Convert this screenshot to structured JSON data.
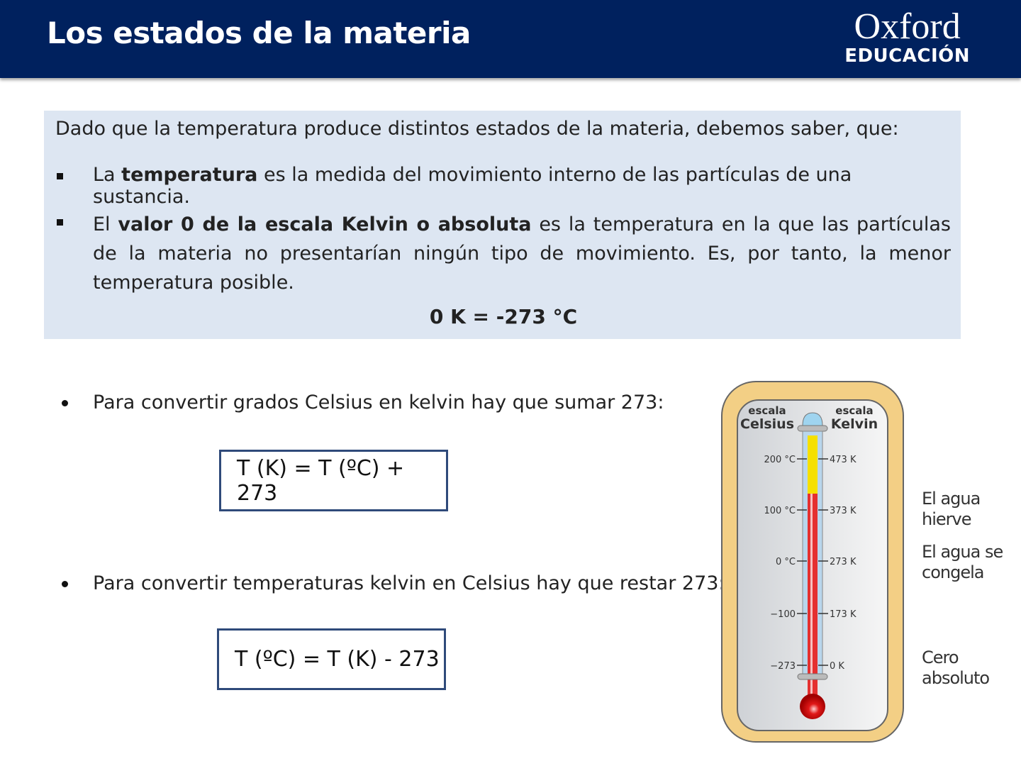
{
  "header": {
    "title": "Los estados de la materia",
    "logo_line1": "Oxford",
    "logo_line2": "EDUCACIÓN",
    "bg_color": "#00215e"
  },
  "info": {
    "intro": "Dado que la temperatura produce distintos estados de la materia, debemos saber, que:",
    "bullet1": {
      "pre": "La ",
      "bold": "temperatura",
      "post": " es la medida del movimiento interno de las partículas de una sustancia."
    },
    "bullet2": {
      "pre": "El ",
      "bold": "valor 0 de la escala Kelvin o absoluta",
      "post": " es la temperatura en la que las partículas de la materia no presentarían ningún tipo de movimiento. Es, por tanto, la menor temperatura posible."
    },
    "equation": "0 K = -273 °C"
  },
  "conversions": [
    {
      "text": "Para convertir grados Celsius en kelvin hay que sumar 273:",
      "formula": "T (K) = T (ºC) + 273"
    },
    {
      "text": "Para convertir temperaturas kelvin en Celsius hay que restar 273:",
      "formula": "T (ºC) = T (K) - 273"
    }
  ],
  "thermometer": {
    "celsius_title_1": "escala",
    "celsius_title_2": "Celsius",
    "kelvin_title_1": "escala",
    "kelvin_title_2": "Kelvin",
    "ticks": [
      {
        "c": "200 °C",
        "k": "473 K"
      },
      {
        "c": "100 °C",
        "k": "373 K"
      },
      {
        "c": "0 °C",
        "k": "273 K"
      },
      {
        "c": "−100",
        "k": "173 K"
      },
      {
        "c": "−273",
        "k": "0 K"
      }
    ],
    "labels": [
      "El agua hierve",
      "El agua se congela",
      "Cero absoluto"
    ]
  }
}
